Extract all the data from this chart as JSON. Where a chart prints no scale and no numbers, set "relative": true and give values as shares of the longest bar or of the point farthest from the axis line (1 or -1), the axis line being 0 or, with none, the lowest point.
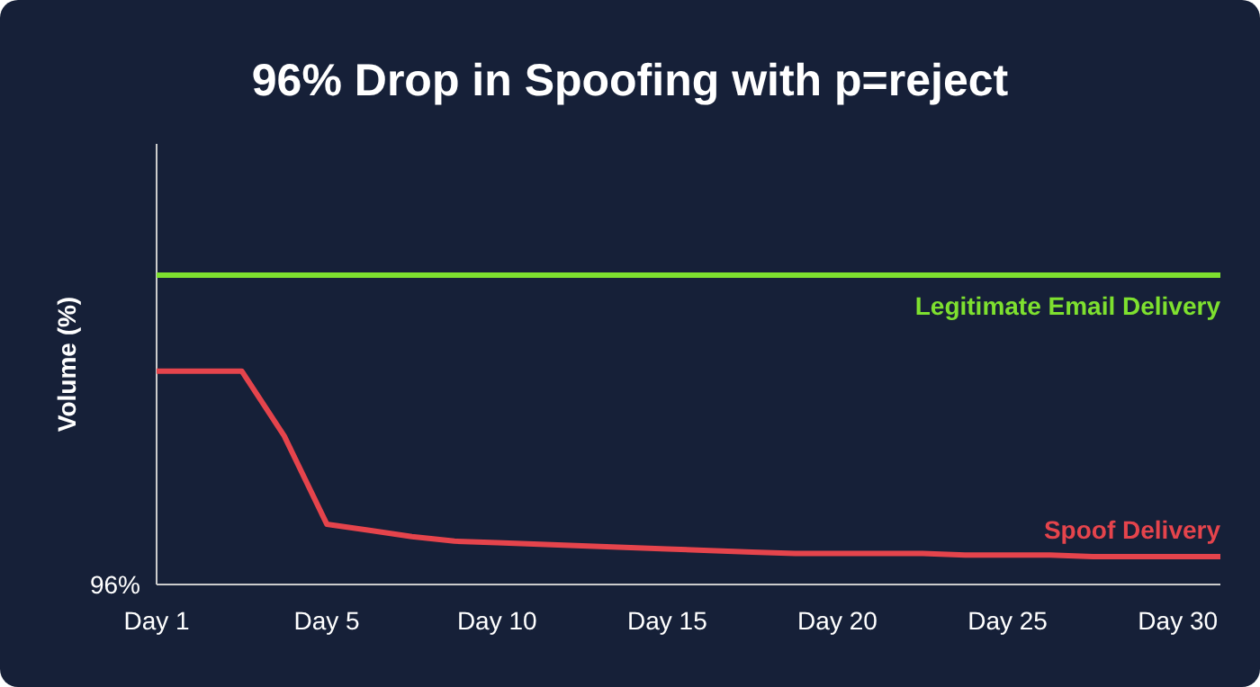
{
  "chart_data": {
    "type": "line",
    "title": "96% Drop in Spoofing with p=reject",
    "ylabel": "Volume (%)",
    "relative": true,
    "annotations": [
      "96%"
    ],
    "categories": [
      "Day 1",
      null,
      null,
      null,
      "Day 5",
      null,
      null,
      null,
      "Day 10",
      null,
      null,
      null,
      "Day 15",
      null,
      null,
      null,
      "Day 20",
      null,
      null,
      null,
      "Day 25",
      null,
      null,
      null,
      "Day 30",
      null
    ],
    "grid": false,
    "legend": false,
    "marker": "none",
    "line_style": "solid",
    "series": [
      {
        "name": "Legitimate Email Delivery",
        "color": "#7ee02f",
        "values": [
          1,
          1,
          1,
          1,
          1,
          1,
          1,
          1,
          1,
          1,
          1,
          1,
          1,
          1,
          1,
          1,
          1,
          1,
          1,
          1,
          1,
          1,
          1,
          1,
          1,
          1
        ]
      },
      {
        "name": "Spoof Delivery",
        "color": "#e5444c",
        "values": [
          0.69,
          0.69,
          0.69,
          0.48,
          0.195,
          0.175,
          0.155,
          0.14,
          0.135,
          0.13,
          0.125,
          0.12,
          0.115,
          0.11,
          0.105,
          0.1,
          0.1,
          0.1,
          0.1,
          0.095,
          0.095,
          0.095,
          0.09,
          0.09,
          0.09,
          0.09
        ]
      }
    ]
  }
}
